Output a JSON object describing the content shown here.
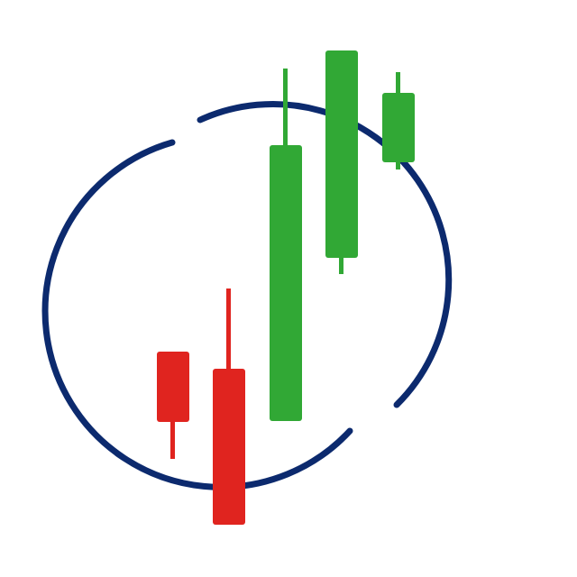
{
  "logo": {
    "description_icon": "candlestick-chart-circle-logo",
    "colors": {
      "background": "#ffffff",
      "ring": "#0c2a6e",
      "bullish": "#31a835",
      "bearish": "#e0241f"
    },
    "candles": [
      {
        "type": "bearish"
      },
      {
        "type": "bearish"
      },
      {
        "type": "bullish"
      },
      {
        "type": "bullish"
      },
      {
        "type": "bullish"
      }
    ]
  }
}
